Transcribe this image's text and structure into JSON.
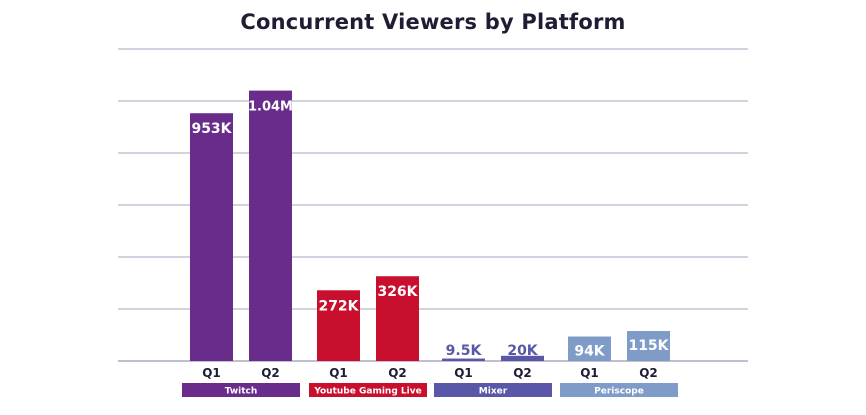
{
  "chart_data": {
    "type": "bar",
    "title": "Concurrent Viewers by Platform",
    "ylim": [
      0,
      1200000
    ],
    "grid": true,
    "groups": [
      {
        "name": "Twitch",
        "color": "#6a2c8a",
        "bars": [
          {
            "label": "Q1",
            "value": 953000,
            "display": "953K"
          },
          {
            "label": "Q2",
            "value": 1040000,
            "display": "1.04M"
          }
        ]
      },
      {
        "name": "Youtube Gaming Live",
        "color": "#c8102e",
        "bars": [
          {
            "label": "Q1",
            "value": 272000,
            "display": "272K"
          },
          {
            "label": "Q2",
            "value": 326000,
            "display": "326K"
          }
        ]
      },
      {
        "name": "Mixer",
        "color": "#5a57a8",
        "bars": [
          {
            "label": "Q1",
            "value": 9500,
            "display": "9.5K"
          },
          {
            "label": "Q2",
            "value": 20000,
            "display": "20K"
          }
        ]
      },
      {
        "name": "Periscope",
        "color": "#7f9cc9",
        "bars": [
          {
            "label": "Q1",
            "value": 94000,
            "display": "94K"
          },
          {
            "label": "Q2",
            "value": 115000,
            "display": "115K"
          }
        ]
      }
    ]
  }
}
